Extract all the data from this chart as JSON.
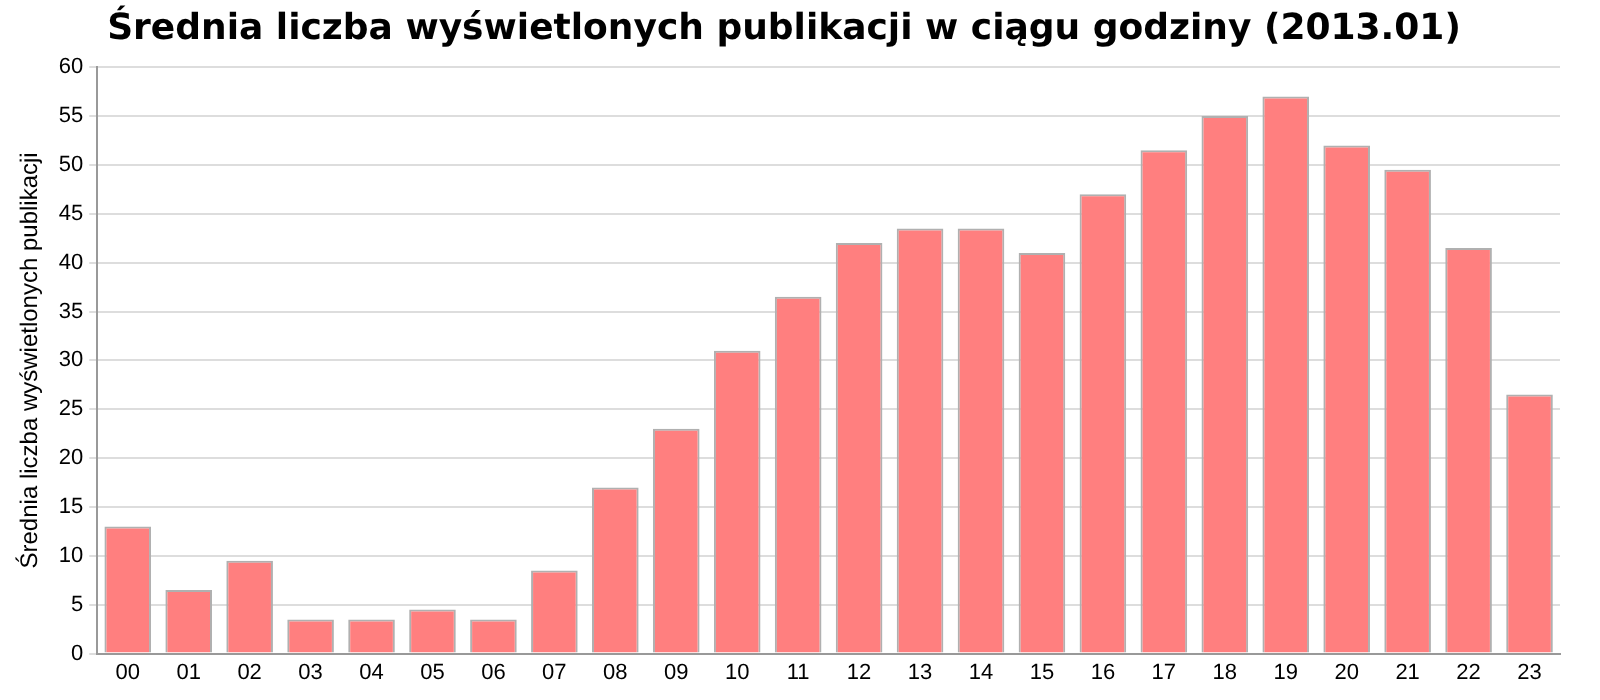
{
  "chart_data": {
    "type": "bar",
    "title": "Średnia liczba wyświetlonych publikacji w ciągu godziny (2013.01)",
    "ylabel": "Średnia liczba wyświetlonych publikacji",
    "categories": [
      "00",
      "01",
      "02",
      "03",
      "04",
      "05",
      "06",
      "07",
      "08",
      "09",
      "10",
      "11",
      "12",
      "13",
      "14",
      "15",
      "16",
      "17",
      "18",
      "19",
      "20",
      "21",
      "22",
      "23"
    ],
    "values": [
      13,
      6.5,
      9.5,
      3.5,
      3.5,
      4.5,
      3.5,
      8.5,
      17,
      23,
      31,
      36.5,
      42,
      43.5,
      43.5,
      41,
      47,
      51.5,
      55,
      57,
      52,
      49.5,
      41.5,
      26.5
    ],
    "color": "#ff7f7f",
    "ylim": [
      0,
      60
    ],
    "yticks": [
      0,
      5,
      10,
      15,
      20,
      25,
      30,
      35,
      40,
      45,
      50,
      55,
      60
    ],
    "grid": "y"
  }
}
